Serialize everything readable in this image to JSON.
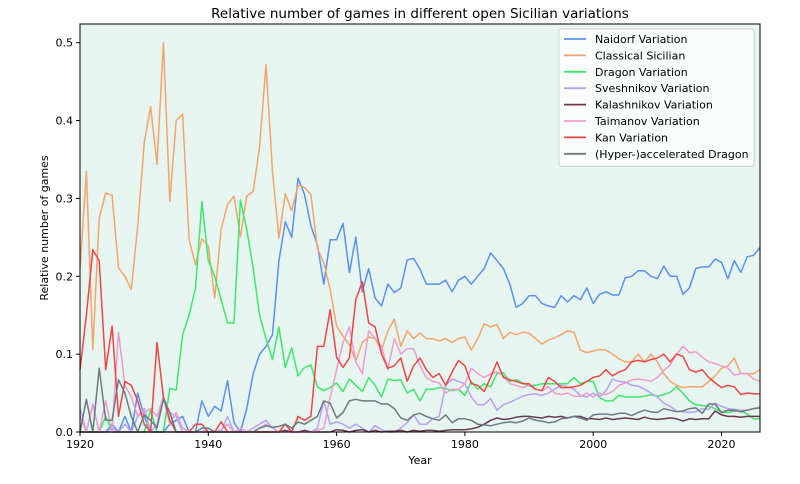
{
  "chart_data": {
    "type": "line",
    "title": "Relative number of games in different open Sicilian variations",
    "xlabel": "Year",
    "ylabel": "Relative number of games",
    "xlim": [
      1920,
      2026
    ],
    "ylim": [
      0,
      0.524
    ],
    "xticks": [
      1920,
      1940,
      1960,
      1980,
      2000,
      2020
    ],
    "yticks": [
      0.0,
      0.1,
      0.2,
      0.3,
      0.4,
      0.5
    ],
    "ytick_labels": [
      "0.0",
      "0.1",
      "0.2",
      "0.3",
      "0.4",
      "0.5"
    ],
    "grid": false,
    "legend_position": "top-right",
    "background_color": "#e6f5ef",
    "x": [
      1920,
      1921,
      1922,
      1923,
      1924,
      1925,
      1926,
      1927,
      1928,
      1929,
      1930,
      1931,
      1932,
      1933,
      1934,
      1935,
      1936,
      1937,
      1938,
      1939,
      1940,
      1941,
      1942,
      1943,
      1944,
      1945,
      1946,
      1947,
      1948,
      1949,
      1950,
      1951,
      1952,
      1953,
      1954,
      1955,
      1956,
      1957,
      1958,
      1959,
      1960,
      1961,
      1962,
      1963,
      1964,
      1965,
      1966,
      1967,
      1968,
      1969,
      1970,
      1971,
      1972,
      1973,
      1974,
      1975,
      1976,
      1977,
      1978,
      1979,
      1980,
      1981,
      1982,
      1983,
      1984,
      1985,
      1986,
      1987,
      1988,
      1989,
      1990,
      1991,
      1992,
      1993,
      1994,
      1995,
      1996,
      1997,
      1998,
      1999,
      2000,
      2001,
      2002,
      2003,
      2004,
      2005,
      2006,
      2007,
      2008,
      2009,
      2010,
      2011,
      2012,
      2013,
      2014,
      2015,
      2016,
      2017,
      2018,
      2019,
      2020,
      2021,
      2022,
      2023,
      2024,
      2025,
      2026
    ],
    "series": [
      {
        "name": "Naidorf Variation",
        "color": "#5b8ff0",
        "values": [
          0,
          0,
          0,
          0,
          0,
          0.01,
          0,
          0.02,
          0,
          0.05,
          0.02,
          0,
          0,
          0,
          0.01,
          0.015,
          0.02,
          0,
          0,
          0.04,
          0.02,
          0.033,
          0.027,
          0.066,
          0.012,
          0,
          0.03,
          0.075,
          0.1,
          0.11,
          0.125,
          0.22,
          0.27,
          0.25,
          0.326,
          0.305,
          0.265,
          0.24,
          0.19,
          0.247,
          0.247,
          0.268,
          0.205,
          0.25,
          0.18,
          0.21,
          0.172,
          0.162,
          0.19,
          0.179,
          0.185,
          0.221,
          0.223,
          0.209,
          0.19,
          0.19,
          0.19,
          0.195,
          0.18,
          0.195,
          0.2,
          0.19,
          0.2,
          0.21,
          0.23,
          0.22,
          0.21,
          0.19,
          0.16,
          0.165,
          0.175,
          0.175,
          0.165,
          0.162,
          0.16,
          0.175,
          0.167,
          0.175,
          0.17,
          0.185,
          0.165,
          0.177,
          0.18,
          0.176,
          0.176,
          0.198,
          0.2,
          0.207,
          0.207,
          0.2,
          0.197,
          0.213,
          0.2,
          0.2,
          0.177,
          0.185,
          0.21,
          0.212,
          0.212,
          0.222,
          0.218,
          0.197,
          0.22,
          0.205,
          0.225,
          0.227,
          0.237
        ]
      },
      {
        "name": "Classical Sicilian",
        "color": "#f4a46a",
        "values": [
          0.21,
          0.335,
          0.106,
          0.275,
          0.307,
          0.304,
          0.211,
          0.2,
          0.183,
          0.264,
          0.371,
          0.418,
          0.344,
          0.5,
          0.296,
          0.4,
          0.408,
          0.247,
          0.215,
          0.248,
          0.239,
          0.172,
          0.26,
          0.292,
          0.303,
          0.251,
          0.303,
          0.309,
          0.367,
          0.472,
          0.335,
          0.249,
          0.306,
          0.284,
          0.317,
          0.314,
          0.305,
          0.236,
          0.217,
          0.183,
          0.136,
          0.123,
          0.112,
          0.091,
          0.115,
          0.122,
          0.12,
          0.105,
          0.13,
          0.145,
          0.11,
          0.13,
          0.12,
          0.127,
          0.12,
          0.12,
          0.117,
          0.12,
          0.115,
          0.12,
          0.122,
          0.105,
          0.12,
          0.139,
          0.135,
          0.138,
          0.12,
          0.128,
          0.125,
          0.128,
          0.127,
          0.12,
          0.113,
          0.118,
          0.121,
          0.125,
          0.13,
          0.128,
          0.105,
          0.102,
          0.104,
          0.106,
          0.105,
          0.1,
          0.094,
          0.09,
          0.09,
          0.1,
          0.09,
          0.1,
          0.09,
          0.075,
          0.065,
          0.06,
          0.057,
          0.058,
          0.058,
          0.058,
          0.065,
          0.072,
          0.082,
          0.085,
          0.095,
          0.075,
          0.075,
          0.075,
          0.08
        ]
      },
      {
        "name": "Dragon Variation",
        "color": "#3de86a",
        "values": [
          0,
          0,
          0,
          0,
          0.02,
          0,
          0,
          0,
          0,
          0,
          0,
          0.028,
          0,
          0,
          0.056,
          0.054,
          0.125,
          0.15,
          0.185,
          0.296,
          0.22,
          0.2,
          0.17,
          0.14,
          0.14,
          0.298,
          0.26,
          0.21,
          0.15,
          0.12,
          0.093,
          0.135,
          0.083,
          0.108,
          0.072,
          0.083,
          0.086,
          0.058,
          0.053,
          0.057,
          0.063,
          0.052,
          0.068,
          0.06,
          0.052,
          0.07,
          0.06,
          0.045,
          0.068,
          0.066,
          0.067,
          0.05,
          0.055,
          0.04,
          0.055,
          0.055,
          0.057,
          0.056,
          0.053,
          0.055,
          0.047,
          0.065,
          0.055,
          0.062,
          0.058,
          0.075,
          0.076,
          0.065,
          0.067,
          0.063,
          0.059,
          0.06,
          0.062,
          0.062,
          0.062,
          0.062,
          0.062,
          0.07,
          0.062,
          0.065,
          0.065,
          0.044,
          0.04,
          0.04,
          0.047,
          0.045,
          0.045,
          0.045,
          0.046,
          0.048,
          0.046,
          0.048,
          0.051,
          0.058,
          0.05,
          0.04,
          0.035,
          0.034,
          0.033,
          0.03,
          0.025,
          0.025,
          0.027,
          0.027,
          0.023,
          0.017,
          0.017
        ]
      },
      {
        "name": "Sveshnikov Variation",
        "color": "#b9a0f5",
        "values": [
          0.03,
          0,
          0.036,
          0,
          0,
          0.005,
          0,
          0.01,
          0,
          0.02,
          0.03,
          0,
          0.01,
          0.045,
          0.025,
          0.02,
          0,
          0,
          0,
          0,
          0,
          0,
          0,
          0.02,
          0,
          0.005,
          0,
          0.005,
          0.01,
          0.015,
          0.005,
          0,
          0,
          0,
          0,
          0,
          0,
          0.005,
          0.04,
          0.01,
          0.013,
          0.01,
          0.005,
          0.01,
          0.005,
          0,
          0.008,
          0.003,
          0,
          0,
          0.005,
          0.012,
          0.022,
          0.01,
          0.01,
          0.017,
          0.02,
          0.06,
          0.068,
          0.065,
          0.062,
          0.045,
          0.035,
          0.035,
          0.043,
          0.028,
          0.035,
          0.038,
          0.042,
          0.046,
          0.048,
          0.049,
          0.047,
          0.05,
          0.055,
          0.06,
          0.058,
          0.055,
          0.047,
          0.045,
          0.05,
          0.045,
          0.053,
          0.068,
          0.065,
          0.064,
          0.06,
          0.059,
          0.055,
          0.05,
          0.045,
          0.037,
          0.033,
          0.027,
          0.026,
          0.025,
          0.026,
          0.03,
          0.029,
          0.037,
          0.033,
          0.03,
          0.029,
          0.028,
          0.028,
          0.03,
          0.032
        ]
      },
      {
        "name": "Kalashnikov Variation",
        "color": "#6b3a50",
        "values": [
          0,
          0,
          0,
          0,
          0,
          0,
          0,
          0,
          0,
          0,
          0,
          0,
          0,
          0,
          0,
          0,
          0,
          0,
          0,
          0,
          0,
          0,
          0,
          0,
          0,
          0,
          0,
          0,
          0,
          0,
          0,
          0,
          0.002,
          0,
          0,
          0.002,
          0,
          0,
          0,
          0,
          0.003,
          0.002,
          0,
          0.002,
          0.003,
          0,
          0.002,
          0,
          0.001,
          0.001,
          0.002,
          0,
          0.002,
          0.001,
          0.002,
          0.002,
          0.001,
          0.002,
          0.003,
          0.003,
          0.003,
          0.004,
          0.006,
          0.01,
          0.015,
          0.018,
          0.016,
          0.017,
          0.019,
          0.02,
          0.02,
          0.019,
          0.018,
          0.02,
          0.019,
          0.02,
          0.018,
          0.02,
          0.02,
          0.017,
          0.017,
          0.016,
          0.018,
          0.016,
          0.017,
          0.018,
          0.017,
          0.016,
          0.019,
          0.017,
          0.016,
          0.017,
          0.018,
          0.017,
          0.014,
          0.017,
          0.016,
          0.017,
          0.017,
          0.027,
          0.022,
          0.02,
          0.02,
          0.019,
          0.02,
          0.02,
          0.02
        ]
      },
      {
        "name": "Taimanov Variation",
        "color": "#f19ad0",
        "values": [
          0.02,
          0,
          0.035,
          0,
          0.04,
          0,
          0.128,
          0.06,
          0.045,
          0.02,
          0.025,
          0.03,
          0.02,
          0.045,
          0.01,
          0.025,
          0.005,
          0,
          0,
          0,
          0.005,
          0,
          0.003,
          0.01,
          0,
          0.005,
          0,
          0,
          0.005,
          0.01,
          0.006,
          0,
          0,
          0,
          0,
          0,
          0,
          0.002,
          0.005,
          0.045,
          0.08,
          0.115,
          0.135,
          0.09,
          0.075,
          0.13,
          0.12,
          0.11,
          0.08,
          0.12,
          0.1,
          0.107,
          0.107,
          0.085,
          0.07,
          0.065,
          0.063,
          0.05,
          0.055,
          0.055,
          0.062,
          0.082,
          0.075,
          0.07,
          0.075,
          0.077,
          0.072,
          0.062,
          0.06,
          0.057,
          0.06,
          0.055,
          0.053,
          0.058,
          0.05,
          0.048,
          0.05,
          0.046,
          0.046,
          0.05,
          0.045,
          0.05,
          0.048,
          0.052,
          0.06,
          0.063,
          0.067,
          0.068,
          0.067,
          0.065,
          0.07,
          0.079,
          0.086,
          0.1,
          0.11,
          0.102,
          0.103,
          0.096,
          0.09,
          0.088,
          0.085,
          0.082,
          0.073,
          0.075,
          0.075,
          0.068,
          0.065
        ]
      },
      {
        "name": "Kan Variation",
        "color": "#f04545",
        "values": [
          0.08,
          0.15,
          0.234,
          0.22,
          0.08,
          0.136,
          0.02,
          0.065,
          0.06,
          0.04,
          0.01,
          0,
          0.115,
          0.045,
          0.015,
          0,
          0,
          0,
          0.01,
          0.01,
          0,
          0,
          0.013,
          0,
          0,
          0,
          0,
          0,
          0,
          0,
          0,
          0,
          0.01,
          0,
          0.02,
          0.015,
          0.02,
          0.11,
          0.11,
          0.157,
          0.096,
          0.083,
          0.095,
          0.17,
          0.193,
          0.14,
          0.135,
          0.1,
          0.082,
          0.085,
          0.095,
          0.065,
          0.085,
          0.095,
          0.08,
          0.07,
          0.075,
          0.06,
          0.077,
          0.092,
          0.085,
          0.062,
          0.06,
          0.052,
          0.07,
          0.09,
          0.07,
          0.067,
          0.065,
          0.062,
          0.062,
          0.055,
          0.053,
          0.07,
          0.065,
          0.057,
          0.057,
          0.058,
          0.06,
          0.065,
          0.07,
          0.072,
          0.08,
          0.072,
          0.077,
          0.08,
          0.09,
          0.092,
          0.09,
          0.093,
          0.095,
          0.1,
          0.09,
          0.1,
          0.097,
          0.08,
          0.077,
          0.08,
          0.07,
          0.063,
          0.057,
          0.06,
          0.058,
          0.048,
          0.05,
          0.049,
          0.049
        ]
      },
      {
        "name": "(Hyper-)accelerated Dragon",
        "color": "#6b7b80",
        "values": [
          0,
          0.042,
          0,
          0.082,
          0.015,
          0.015,
          0.067,
          0.05,
          0.02,
          0,
          0.022,
          0.015,
          0.005,
          0.042,
          0.025,
          0,
          0,
          0,
          0,
          0.005,
          0.005,
          0,
          0,
          0,
          0,
          0,
          0,
          0,
          0.005,
          0.008,
          0.006,
          0.007,
          0.01,
          0.005,
          0.013,
          0.01,
          0.015,
          0.02,
          0.04,
          0.037,
          0.018,
          0.025,
          0.04,
          0.042,
          0.04,
          0.04,
          0.04,
          0.036,
          0.036,
          0.03,
          0.018,
          0.015,
          0.022,
          0.024,
          0.02,
          0.017,
          0.015,
          0.022,
          0.012,
          0.017,
          0.017,
          0.015,
          0.01,
          0.009,
          0.008,
          0.01,
          0.012,
          0.013,
          0.012,
          0.014,
          0.018,
          0.015,
          0.014,
          0.012,
          0.013,
          0.017,
          0.018,
          0.02,
          0.018,
          0.015,
          0.022,
          0.023,
          0.023,
          0.022,
          0.024,
          0.024,
          0.021,
          0.025,
          0.028,
          0.026,
          0.025,
          0.03,
          0.028,
          0.026,
          0.027,
          0.03,
          0.031,
          0.024,
          0.036,
          0.036,
          0.025,
          0.028,
          0.028,
          0.026,
          0.028,
          0.03,
          0.031
        ]
      }
    ]
  }
}
